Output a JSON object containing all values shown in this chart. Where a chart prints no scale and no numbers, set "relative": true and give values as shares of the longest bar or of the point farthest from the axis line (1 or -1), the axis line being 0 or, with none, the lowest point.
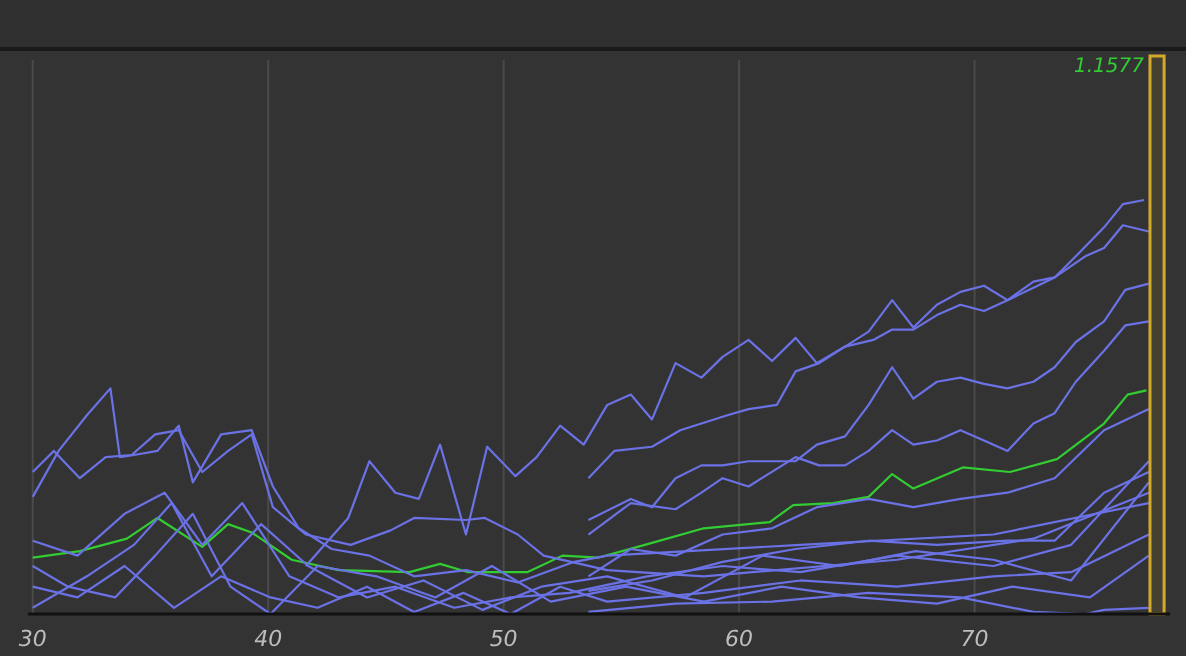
{
  "chart_data": {
    "type": "line",
    "relative": true,
    "xlim": [
      29.8,
      78.3
    ],
    "xticks": [
      30,
      40,
      50,
      60,
      70
    ],
    "grid": "x",
    "line_style": "solid",
    "marker": "none",
    "annotations": [
      "1.1577"
    ],
    "bands": [
      {
        "axis": "x",
        "from": 77.45,
        "to": 78.05,
        "color": "#d4a82a"
      }
    ],
    "series": [
      {
        "color": "#33cc33",
        "x": [
          30,
          32,
          34,
          35.3,
          37.2,
          38.3,
          39.3,
          41,
          43,
          46,
          47.3,
          48.5,
          51,
          52.5,
          54,
          56,
          58.5,
          61.3,
          62.3,
          64,
          65.5,
          66.5,
          67.4,
          69.5,
          71.5,
          73.5,
          75.5,
          76.5,
          77.3
        ],
        "values": [
          0.136,
          0.152,
          0.182,
          0.232,
          0.162,
          0.217,
          0.197,
          0.131,
          0.106,
          0.101,
          0.121,
          0.101,
          0.101,
          0.141,
          0.136,
          0.167,
          0.207,
          0.222,
          0.263,
          0.268,
          0.283,
          0.338,
          0.303,
          0.354,
          0.343,
          0.374,
          0.46,
          0.53,
          0.54
        ]
      },
      {
        "color": "#6b72e6",
        "x": [
          41.6,
          43.4,
          44.3,
          45.4,
          46.4,
          47.3,
          48.4,
          49.3,
          50.5,
          51.4,
          52.4,
          53.4,
          54.4,
          55.4,
          56.3,
          57.3,
          58.4,
          59.3,
          60.4,
          61.4,
          62.4,
          63.3,
          64.5,
          65.5,
          66.5,
          67.4,
          68.4,
          69.4,
          70.4,
          71.4,
          72.5,
          73.4,
          74.3,
          75.5,
          76.3,
          77.2
        ],
        "values": [
          0.116,
          0.232,
          0.369,
          0.293,
          0.278,
          0.409,
          0.192,
          0.404,
          0.333,
          0.379,
          0.455,
          0.409,
          0.505,
          0.53,
          0.47,
          0.606,
          0.571,
          0.621,
          0.662,
          0.611,
          0.667,
          0.606,
          0.646,
          0.682,
          0.758,
          0.692,
          0.747,
          0.778,
          0.793,
          0.758,
          0.803,
          0.813,
          0.864,
          0.934,
          0.99,
          1
        ]
      },
      {
        "color": "#6b72e6",
        "x": [
          53.6,
          54.7,
          56.3,
          57.5,
          58.4,
          59.5,
          60.4,
          61.6,
          62.4,
          63.4,
          64.5,
          65.7,
          66.5,
          67.4,
          68.4,
          69.4,
          70.4,
          71.4,
          72.5,
          73.4,
          74.7,
          75.5,
          76.3,
          77.4
        ],
        "values": [
          0.328,
          0.394,
          0.404,
          0.444,
          0.46,
          0.48,
          0.495,
          0.505,
          0.586,
          0.606,
          0.646,
          0.662,
          0.687,
          0.687,
          0.722,
          0.747,
          0.732,
          0.758,
          0.788,
          0.813,
          0.864,
          0.884,
          0.939,
          0.924
        ]
      },
      {
        "color": "#6b72e6",
        "x": [
          53.6,
          55.4,
          56.3,
          57.3,
          58.4,
          59.3,
          60.4,
          61.4,
          62.4,
          63.3,
          64.5,
          65.5,
          66.5,
          67.4,
          68.4,
          69.4,
          70.4,
          71.4,
          72.5,
          73.4,
          74.3,
          75.5,
          76.4,
          77.4
        ],
        "values": [
          0.227,
          0.278,
          0.258,
          0.328,
          0.359,
          0.359,
          0.369,
          0.369,
          0.369,
          0.409,
          0.429,
          0.505,
          0.596,
          0.52,
          0.561,
          0.571,
          0.556,
          0.545,
          0.561,
          0.596,
          0.657,
          0.707,
          0.783,
          0.798
        ]
      },
      {
        "color": "#6b72e6",
        "x": [
          53.6,
          55.4,
          57.3,
          58.4,
          59.3,
          60.4,
          62.4,
          63.4,
          64.5,
          65.5,
          66.5,
          67.4,
          68.4,
          69.4,
          70.4,
          71.4,
          72.5,
          73.4,
          74.3,
          75.5,
          76.4,
          77.4
        ],
        "values": [
          0.192,
          0.268,
          0.253,
          0.293,
          0.328,
          0.308,
          0.379,
          0.359,
          0.359,
          0.394,
          0.444,
          0.409,
          0.419,
          0.444,
          0.419,
          0.394,
          0.46,
          0.485,
          0.561,
          0.636,
          0.697,
          0.707
        ]
      },
      {
        "color": "#6b72e6",
        "x": [
          53.6,
          55.4,
          57.3,
          59.3,
          61.4,
          63.3,
          65.5,
          67.4,
          69.4,
          71.4,
          73.4,
          75.5,
          77.4
        ],
        "values": [
          0.091,
          0.157,
          0.141,
          0.192,
          0.207,
          0.258,
          0.278,
          0.258,
          0.278,
          0.293,
          0.328,
          0.444,
          0.495
        ]
      },
      {
        "color": "#6b72e6",
        "x": [
          53.6,
          56.3,
          59.3,
          62.4,
          65.5,
          68.4,
          71.4,
          73.4,
          75.5,
          77.4
        ],
        "values": [
          0.056,
          0.081,
          0.126,
          0.157,
          0.177,
          0.167,
          0.177,
          0.177,
          0.293,
          0.343
        ]
      },
      {
        "color": "#6b72e6",
        "x": [
          53.6,
          57.3,
          61.4,
          65.5,
          69.4,
          72.5,
          74.7,
          75.5,
          77.4
        ],
        "values": [
          0.005,
          0.025,
          0.03,
          0.051,
          0.04,
          0.005,
          0,
          0.01,
          0.015
        ]
      },
      {
        "color": "#6b72e6",
        "x": [
          30,
          31.1,
          32.3,
          33.3,
          33.7,
          34.3,
          35.3,
          36.2,
          36.8,
          38,
          39.3,
          40.2,
          41.3,
          42.7,
          44.3,
          46.2,
          48.4,
          50.6,
          53,
          54.4,
          62.6,
          70.8,
          77.4
        ],
        "values": [
          0.283,
          0.394,
          0.48,
          0.545,
          0.379,
          0.384,
          0.394,
          0.455,
          0.318,
          0.434,
          0.444,
          0.308,
          0.207,
          0.157,
          0.141,
          0.091,
          0.106,
          0.076,
          0.126,
          0.141,
          0.167,
          0.192,
          0.268
        ]
      },
      {
        "color": "#6b72e6",
        "x": [
          30,
          30.9,
          32,
          33.1,
          34.2,
          35.2,
          36.2,
          37.2,
          38.3,
          39.3,
          40.2,
          41.6,
          43.5,
          45.2,
          46.2,
          48.4,
          49.2,
          50.6,
          51.7,
          54.4,
          58.5,
          66.7,
          72.5,
          77.4
        ],
        "values": [
          0.343,
          0.394,
          0.328,
          0.379,
          0.384,
          0.434,
          0.444,
          0.343,
          0.394,
          0.434,
          0.258,
          0.192,
          0.167,
          0.202,
          0.232,
          0.227,
          0.232,
          0.192,
          0.141,
          0.106,
          0.091,
          0.131,
          0.182,
          0.293
        ]
      },
      {
        "color": "#6b72e6",
        "x": [
          30,
          31.9,
          33.9,
          36,
          38,
          40.1,
          42.1,
          44.2,
          46.2,
          48.3,
          50.3,
          52.4,
          54.4,
          58.5,
          62.6,
          66.7,
          70.8,
          74.1,
          77.4
        ],
        "values": [
          0.066,
          0.04,
          0.116,
          0.015,
          0.091,
          0.04,
          0.015,
          0.066,
          0.005,
          0.051,
          0,
          0.066,
          0.03,
          0.051,
          0.081,
          0.066,
          0.091,
          0.101,
          0.192
        ]
      },
      {
        "color": "#6b72e6",
        "x": [
          30,
          31.9,
          33.9,
          35.6,
          37.2,
          38.9,
          40.9,
          43,
          45.4,
          47.9,
          50.3,
          52.8,
          56.1,
          59.3,
          62.6,
          66.7,
          70.8,
          74.1,
          77.4
        ],
        "values": [
          0.177,
          0.141,
          0.242,
          0.293,
          0.167,
          0.268,
          0.091,
          0.04,
          0.066,
          0.015,
          0.04,
          0.051,
          0.091,
          0.116,
          0.101,
          0.141,
          0.116,
          0.167,
          0.369
        ]
      },
      {
        "color": "#6b72e6",
        "x": [
          30,
          32.3,
          34.3,
          35.9,
          37.6,
          39.7,
          41.7,
          44.2,
          46.6,
          49.1,
          51.6,
          54.4,
          57.7,
          61,
          64.3,
          67.5,
          70.8,
          74.1,
          77.4
        ],
        "values": [
          0.015,
          0.091,
          0.167,
          0.268,
          0.091,
          0.217,
          0.116,
          0.04,
          0.081,
          0.01,
          0.066,
          0.091,
          0.04,
          0.141,
          0.116,
          0.152,
          0.131,
          0.081,
          0.318
        ]
      },
      {
        "color": "#6b72e6",
        "x": [
          30,
          31.5,
          33.5,
          35.2,
          36.8,
          38.4,
          40.1,
          42.1,
          44.6,
          47.1,
          49.5,
          52,
          55.2,
          58.5,
          61.8,
          65.1,
          68.4,
          71.6,
          74.9,
          77.4
        ],
        "values": [
          0.116,
          0.066,
          0.04,
          0.141,
          0.242,
          0.066,
          0,
          0.116,
          0.091,
          0.04,
          0.116,
          0.03,
          0.066,
          0.03,
          0.066,
          0.04,
          0.025,
          0.066,
          0.04,
          0.141
        ]
      }
    ]
  }
}
